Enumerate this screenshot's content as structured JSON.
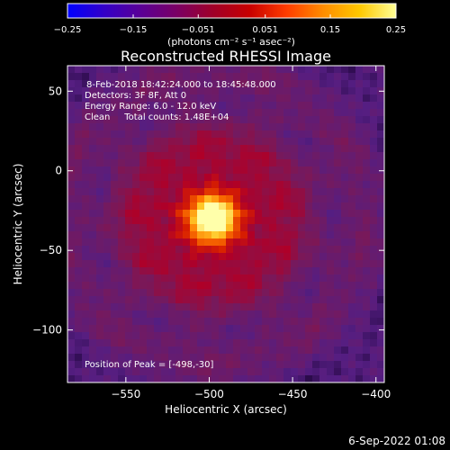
{
  "chart_data": {
    "type": "heatmap",
    "title": "Reconstructed RHESSI Image",
    "xlabel": "Heliocentric X (arcsec)",
    "ylabel": "Heliocentric Y (arcsec)",
    "xlim": [
      -585,
      -395
    ],
    "ylim": [
      -133,
      66
    ],
    "x_ticks": [
      -550,
      -500,
      -450,
      -400
    ],
    "y_ticks": [
      50,
      0,
      -50,
      -100
    ],
    "x_tick_labels": [
      "−550",
      "−500",
      "−450",
      "−400"
    ],
    "y_tick_labels": [
      "50",
      "0",
      "−50",
      "−100"
    ],
    "colorbar": {
      "range": [
        -0.25,
        0.25
      ],
      "ticks": [
        -0.25,
        -0.15,
        -0.051,
        0.051,
        0.15,
        0.25
      ],
      "tick_labels": [
        "−0.25",
        "−0.15",
        "−0.051",
        "0.051",
        "0.15",
        "0.25"
      ],
      "unit_label": "(photons cm⁻² s⁻¹ asec⁻²)",
      "colors": [
        "#0000ff",
        "#3300c8",
        "#5a0096",
        "#7a0064",
        "#a00028",
        "#c80000",
        "#ff3c00",
        "#ff8c00",
        "#ffc800",
        "#ffff96"
      ]
    },
    "annotations": [
      "8-Feb-2018 18:42:24.000 to 18:45:48.000",
      "Detectors: 3F 8F, Att 0",
      "Energy Range: 6.0 - 12.0 keV",
      "Clean     Total counts: 1.48E+04"
    ],
    "peak_label": "Position of Peak = [-498,-30]",
    "peak": [
      -498,
      -30
    ],
    "source_sigma_arcsec": 14,
    "grid": false
  },
  "footer_timestamp": "6-Sep-2022 01:08",
  "colors": {
    "background": "#000000",
    "foreground": "#ffffff",
    "low_emission": "#5a1e82"
  }
}
